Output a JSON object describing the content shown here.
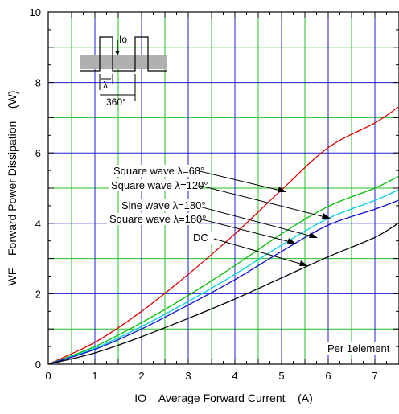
{
  "chart_data": {
    "type": "line",
    "xlabel": "IO    Average Forward Current    (A)",
    "ylabel": "WF    Forward Power Dissipation    (W)",
    "xlim": [
      0,
      7.5
    ],
    "ylim": [
      0,
      10
    ],
    "x_ticks": [
      "0",
      "1",
      "2",
      "3",
      "4",
      "5",
      "6",
      "7"
    ],
    "y_ticks": [
      "0",
      "2",
      "4",
      "6",
      "8",
      "10"
    ],
    "grid": true,
    "note": "Per 1element",
    "colors": {
      "frame": "#000000",
      "grid_major": "#1f1fd0",
      "grid_minor": "#22c022",
      "diagram_fill": "#b0b0b0"
    },
    "diagram_labels": {
      "current": "Io",
      "conduction": "λ",
      "period": "360°"
    },
    "series": [
      {
        "name": "Square wave λ=60°",
        "color": "#e00000",
        "x": [
          0,
          1,
          2,
          3,
          4,
          5,
          6,
          7,
          7.5
        ],
        "y": [
          0,
          0.62,
          1.5,
          2.55,
          3.7,
          4.95,
          6.15,
          6.85,
          7.3
        ]
      },
      {
        "name": "Square wave λ=120°",
        "color": "#00c000",
        "x": [
          0,
          1,
          2,
          3,
          4,
          5,
          6,
          7,
          7.5
        ],
        "y": [
          0,
          0.5,
          1.18,
          1.95,
          2.8,
          3.7,
          4.48,
          5.0,
          5.33
        ]
      },
      {
        "name": "Sine wave λ=180°",
        "color": "#00d0e0",
        "x": [
          0,
          1,
          2,
          3,
          4,
          5,
          6,
          7,
          7.5
        ],
        "y": [
          0,
          0.45,
          1.07,
          1.78,
          2.55,
          3.38,
          4.14,
          4.65,
          4.95
        ]
      },
      {
        "name": "Square wave λ=180°",
        "color": "#1010d0",
        "x": [
          0,
          1,
          2,
          3,
          4,
          5,
          6,
          7,
          7.5
        ],
        "y": [
          0,
          0.42,
          1.0,
          1.68,
          2.4,
          3.2,
          3.95,
          4.4,
          4.65
        ]
      },
      {
        "name": "DC",
        "color": "#000000",
        "x": [
          0,
          1,
          2,
          3,
          4,
          5,
          6,
          7,
          7.5
        ],
        "y": [
          0,
          0.32,
          0.78,
          1.3,
          1.85,
          2.45,
          3.05,
          3.6,
          4.0
        ]
      }
    ]
  }
}
